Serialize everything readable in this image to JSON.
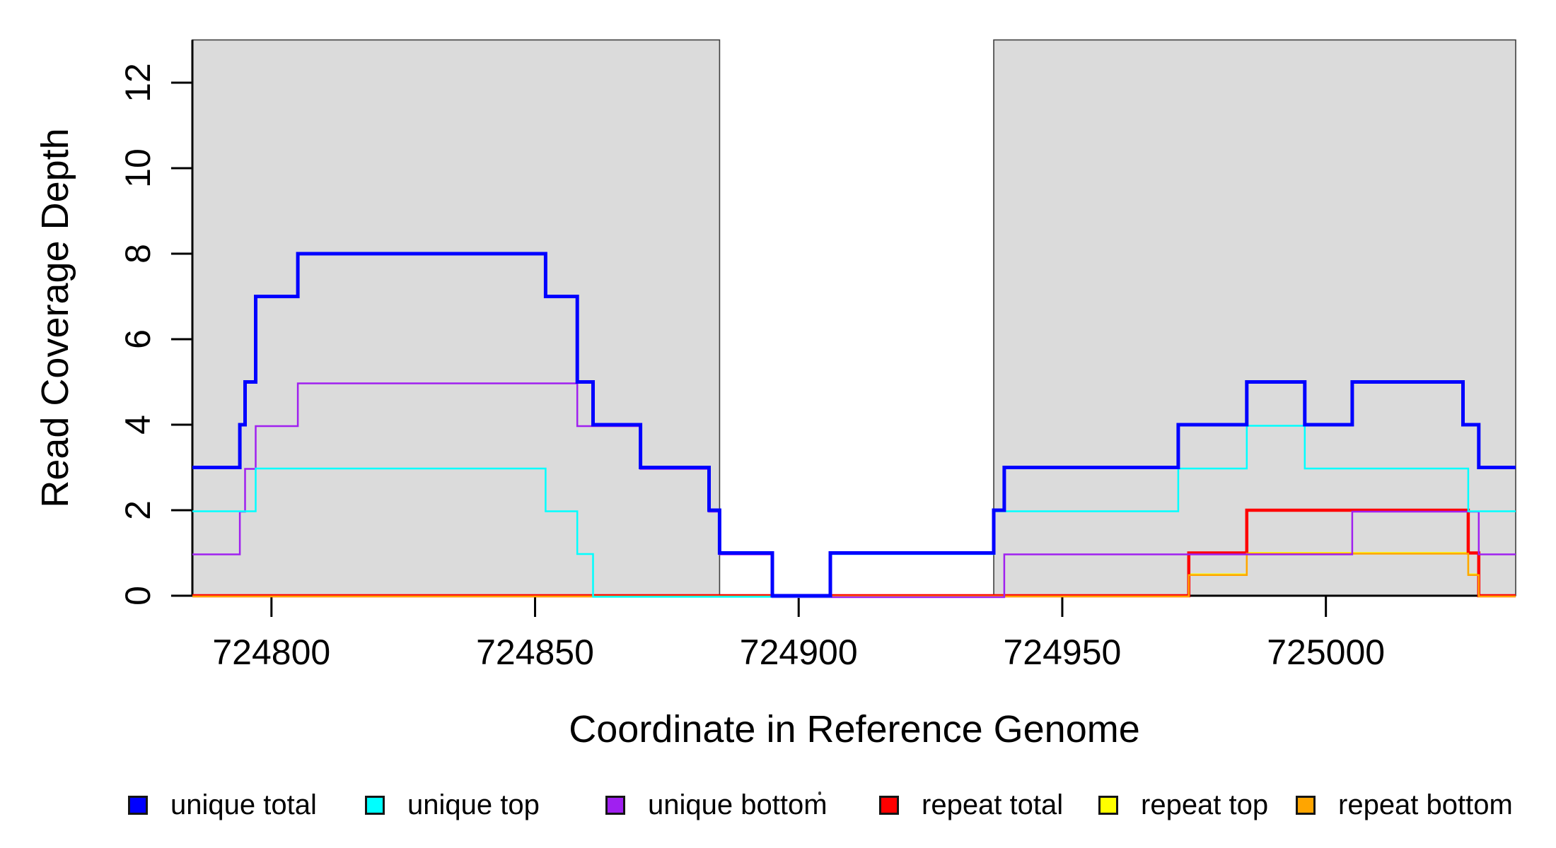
{
  "figure": {
    "x_axis_label": "Coordinate in Reference Genome",
    "y_axis_label": "Read Coverage Depth"
  },
  "legend": {
    "items": [
      {
        "label": "unique total",
        "color": "#0000FF"
      },
      {
        "label": "unique top",
        "color": "#00FFFF"
      },
      {
        "label": "unique bottom",
        "color": "#A020F0"
      },
      {
        "label": "repeat total",
        "color": "#FF0000"
      },
      {
        "label": "repeat top",
        "color": "#FFFF00"
      },
      {
        "label": "repeat bottom",
        "color": "#FFA500"
      }
    ]
  },
  "chart_data": {
    "type": "line",
    "subtype": "step-after-coverage-profile",
    "title": "",
    "xlabel": "Coordinate in Reference Genome",
    "ylabel": "Read Coverage Depth",
    "xlim": [
      724785,
      725036
    ],
    "ylim": [
      0,
      13
    ],
    "x_ticks": [
      724800,
      724850,
      724900,
      724950,
      725000
    ],
    "y_ticks": [
      0,
      2,
      4,
      6,
      8,
      10,
      12
    ],
    "grid": false,
    "legend_position": "bottom-horizontal",
    "shaded_regions": [
      {
        "name": "aligned-region-left",
        "x0": 724785,
        "x1": 724885,
        "fill": "#DBDBDB",
        "border": "#3f3f3f"
      },
      {
        "name": "aligned-region-right",
        "x0": 724937,
        "x1": 725036,
        "fill": "#DBDBDB",
        "border": "#3f3f3f"
      }
    ],
    "series": [
      {
        "name": "unique total",
        "color": "#0000FF",
        "width": 5,
        "points": [
          [
            724785,
            3
          ],
          [
            724794,
            4
          ],
          [
            724795,
            5
          ],
          [
            724797,
            7
          ],
          [
            724805,
            8
          ],
          [
            724852,
            7
          ],
          [
            724858,
            5
          ],
          [
            724861,
            4
          ],
          [
            724870,
            3
          ],
          [
            724883,
            2
          ],
          [
            724885,
            1
          ],
          [
            724895,
            0
          ],
          [
            724906,
            1
          ],
          [
            724937,
            2
          ],
          [
            724939,
            3
          ],
          [
            724972,
            4
          ],
          [
            724985,
            5
          ],
          [
            724996,
            4
          ],
          [
            725005,
            5
          ],
          [
            725026,
            4
          ],
          [
            725029,
            3
          ],
          [
            725036,
            3
          ]
        ]
      },
      {
        "name": "unique top",
        "color": "#00FFFF",
        "width": 2.5,
        "points": [
          [
            724785,
            2
          ],
          [
            724797,
            3
          ],
          [
            724852,
            2
          ],
          [
            724858,
            1
          ],
          [
            724861,
            0
          ],
          [
            724906,
            1
          ],
          [
            724937,
            2
          ],
          [
            724972,
            3
          ],
          [
            724985,
            4
          ],
          [
            724996,
            3
          ],
          [
            725027,
            2
          ],
          [
            725036,
            2
          ]
        ]
      },
      {
        "name": "unique bottom",
        "color": "#A020F0",
        "width": 2.5,
        "points": [
          [
            724785,
            1
          ],
          [
            724794,
            2
          ],
          [
            724795,
            3
          ],
          [
            724797,
            4
          ],
          [
            724805,
            5
          ],
          [
            724858,
            4
          ],
          [
            724870,
            3
          ],
          [
            724883,
            2
          ],
          [
            724885,
            1
          ],
          [
            724895,
            0
          ],
          [
            724939,
            1
          ],
          [
            725005,
            2
          ],
          [
            725029,
            1
          ],
          [
            725036,
            1
          ]
        ]
      },
      {
        "name": "repeat total",
        "color": "#FF0000",
        "width": 4.5,
        "points": [
          [
            724785,
            0
          ],
          [
            724974,
            1
          ],
          [
            724985,
            2
          ],
          [
            725027,
            1
          ],
          [
            725029,
            0
          ],
          [
            725036,
            0
          ]
        ]
      },
      {
        "name": "repeat top",
        "color": "#FFFF00",
        "width": 2.5,
        "points": [
          [
            724785,
            0
          ],
          [
            724974,
            0.5
          ],
          [
            724985,
            1
          ],
          [
            725027,
            0.5
          ],
          [
            725029,
            0
          ],
          [
            725036,
            0
          ]
        ]
      },
      {
        "name": "repeat bottom",
        "color": "#FFA500",
        "width": 2.5,
        "points": [
          [
            724785,
            0
          ],
          [
            724974,
            0.5
          ],
          [
            724985,
            1
          ],
          [
            725027,
            0.5
          ],
          [
            725029,
            0
          ],
          [
            725036,
            0
          ]
        ]
      }
    ],
    "draw_order": [
      4,
      3,
      5,
      2,
      1,
      0
    ]
  }
}
